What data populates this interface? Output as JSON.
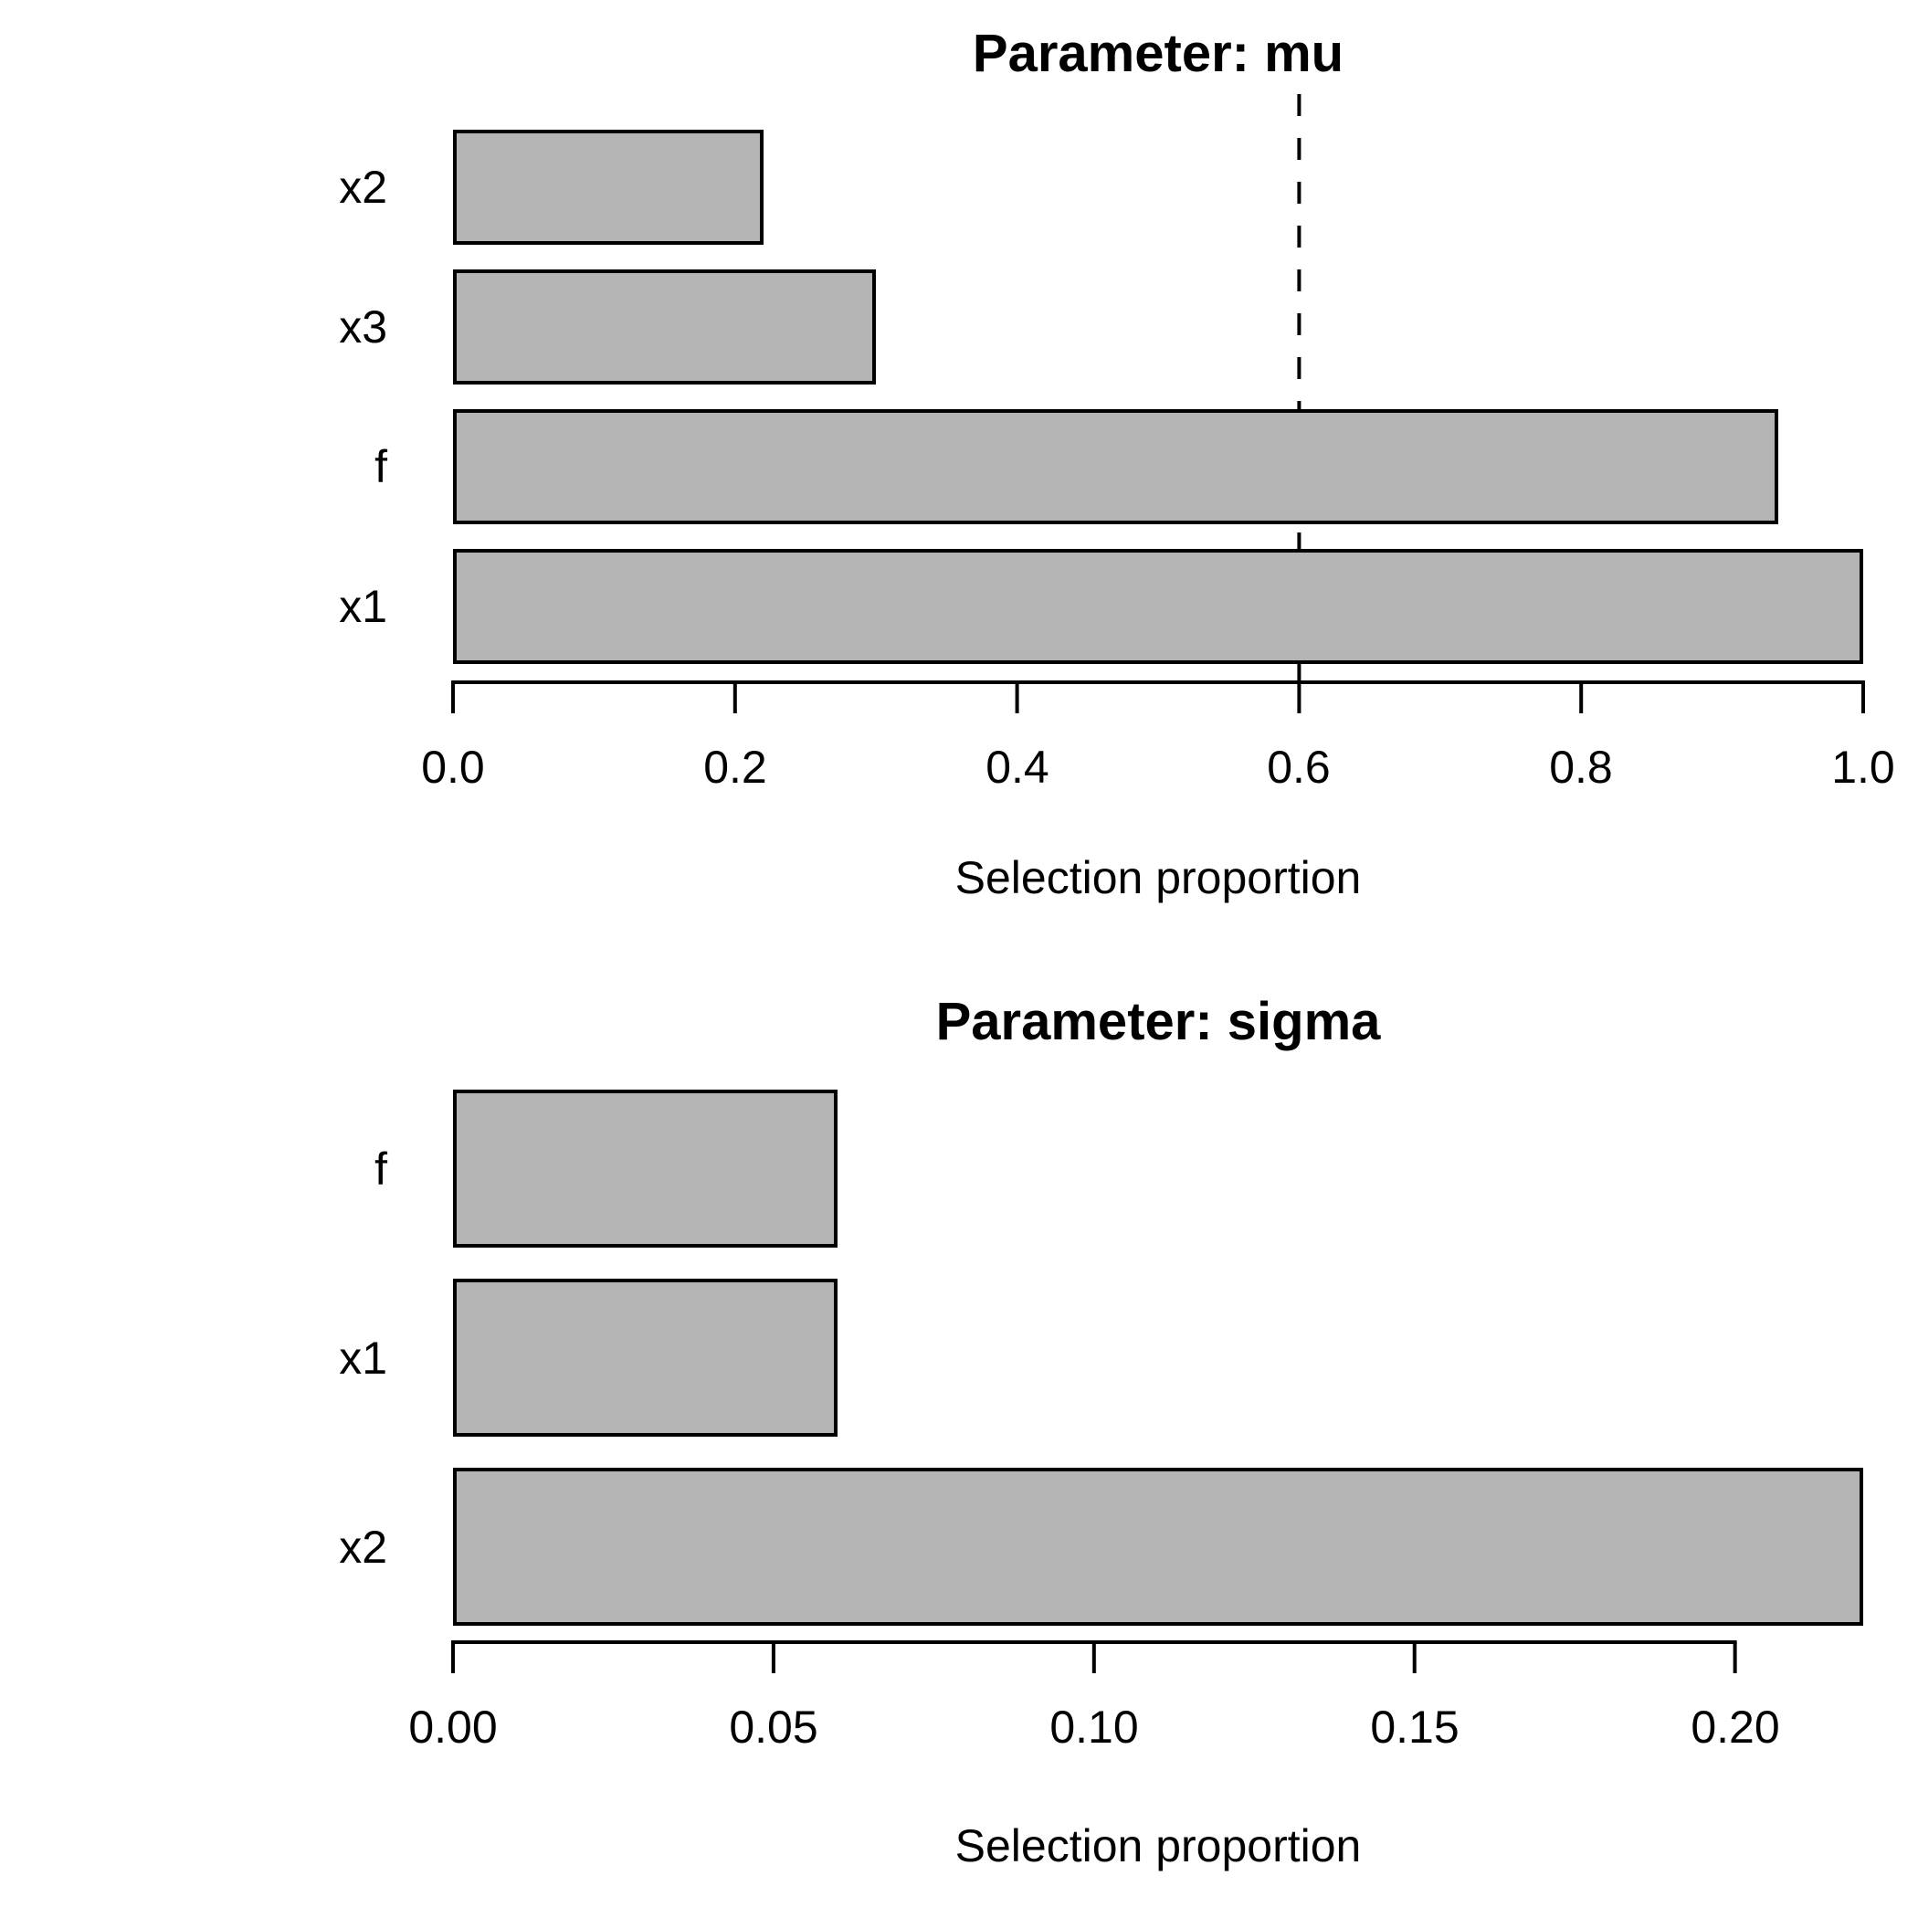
{
  "figure": {
    "background_color": "#ffffff",
    "bar_fill_color": "#b4b4b4",
    "bar_border_color": "#000000",
    "axis_color": "#000000",
    "text_color": "#000000"
  },
  "chart_data": [
    {
      "type": "bar",
      "orientation": "horizontal",
      "title": "Parameter: mu",
      "xlabel": "Selection proportion",
      "categories": [
        "x2",
        "x3",
        "f",
        "x1"
      ],
      "values": [
        0.22,
        0.3,
        0.94,
        1.0
      ],
      "xlim": [
        0,
        1.0
      ],
      "xticks": [
        0.0,
        0.2,
        0.4,
        0.6,
        0.8,
        1.0
      ],
      "xtick_labels": [
        "0.0",
        "0.2",
        "0.4",
        "0.6",
        "0.8",
        "1.0"
      ],
      "threshold_line": {
        "value": 0.6,
        "style": "dashed",
        "color": "#000000"
      },
      "grid": false,
      "legend": null
    },
    {
      "type": "bar",
      "orientation": "horizontal",
      "title": "Parameter: sigma",
      "xlabel": "Selection proportion",
      "categories": [
        "f",
        "x1",
        "x2"
      ],
      "values": [
        0.06,
        0.06,
        0.22
      ],
      "xlim": [
        0,
        0.22
      ],
      "xticks": [
        0.0,
        0.05,
        0.1,
        0.15,
        0.2
      ],
      "xtick_labels": [
        "0.00",
        "0.05",
        "0.10",
        "0.15",
        "0.20"
      ],
      "threshold_line": null,
      "grid": false,
      "legend": null
    }
  ]
}
